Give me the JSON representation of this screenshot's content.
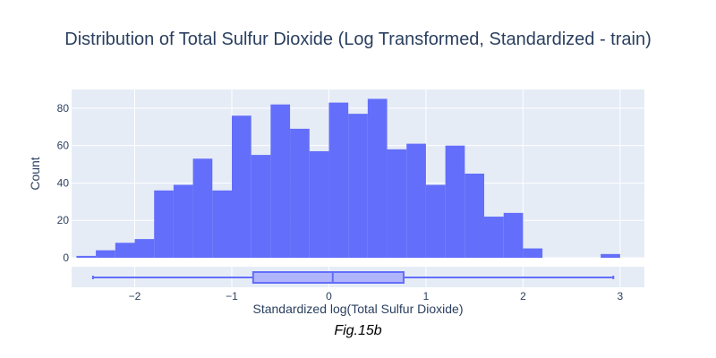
{
  "chart_data": {
    "type": "bar",
    "title": "Distribution of Total Sulfur Dioxide (Log Transformed, Standardized - train)",
    "xlabel": "Standardized log(Total Sulfur Dioxide)",
    "ylabel": "Count",
    "caption": "Fig.15b",
    "xlim": [
      -2.65,
      3.25
    ],
    "ylim": [
      0,
      90
    ],
    "x_ticks": [
      -2,
      -1,
      0,
      1,
      2,
      3
    ],
    "x_tick_labels": [
      "−2",
      "−1",
      "0",
      "1",
      "2",
      "3"
    ],
    "y_ticks": [
      0,
      20,
      40,
      60,
      80
    ],
    "y_tick_labels": [
      "0",
      "20",
      "40",
      "60",
      "80"
    ],
    "bin_width": 0.2,
    "bins": [
      {
        "x0": -2.6,
        "count": 1
      },
      {
        "x0": -2.4,
        "count": 4
      },
      {
        "x0": -2.2,
        "count": 8
      },
      {
        "x0": -2.0,
        "count": 10
      },
      {
        "x0": -1.8,
        "count": 36
      },
      {
        "x0": -1.6,
        "count": 39
      },
      {
        "x0": -1.4,
        "count": 53
      },
      {
        "x0": -1.2,
        "count": 36
      },
      {
        "x0": -1.0,
        "count": 76
      },
      {
        "x0": -0.8,
        "count": 55
      },
      {
        "x0": -0.6,
        "count": 82
      },
      {
        "x0": -0.4,
        "count": 69
      },
      {
        "x0": -0.2,
        "count": 57
      },
      {
        "x0": 0.0,
        "count": 83
      },
      {
        "x0": 0.2,
        "count": 77
      },
      {
        "x0": 0.4,
        "count": 85
      },
      {
        "x0": 0.6,
        "count": 58
      },
      {
        "x0": 0.8,
        "count": 61
      },
      {
        "x0": 1.0,
        "count": 39
      },
      {
        "x0": 1.2,
        "count": 60
      },
      {
        "x0": 1.4,
        "count": 45
      },
      {
        "x0": 1.6,
        "count": 22
      },
      {
        "x0": 1.8,
        "count": 24
      },
      {
        "x0": 2.0,
        "count": 5
      },
      {
        "x0": 2.2,
        "count": 0
      },
      {
        "x0": 2.4,
        "count": 0
      },
      {
        "x0": 2.6,
        "count": 0
      },
      {
        "x0": 2.8,
        "count": 2
      }
    ],
    "boxplot": {
      "min": -2.43,
      "q1": -0.78,
      "median": 0.04,
      "q3": 0.77,
      "max": 2.93
    },
    "grid": true,
    "colors": {
      "bar": "#636efa",
      "box_fill": "#b1b6fc",
      "box_line": "#636efa",
      "plot_bg": "#e5ecf6",
      "grid": "#ffffff",
      "text": "#2a3f5f"
    }
  }
}
